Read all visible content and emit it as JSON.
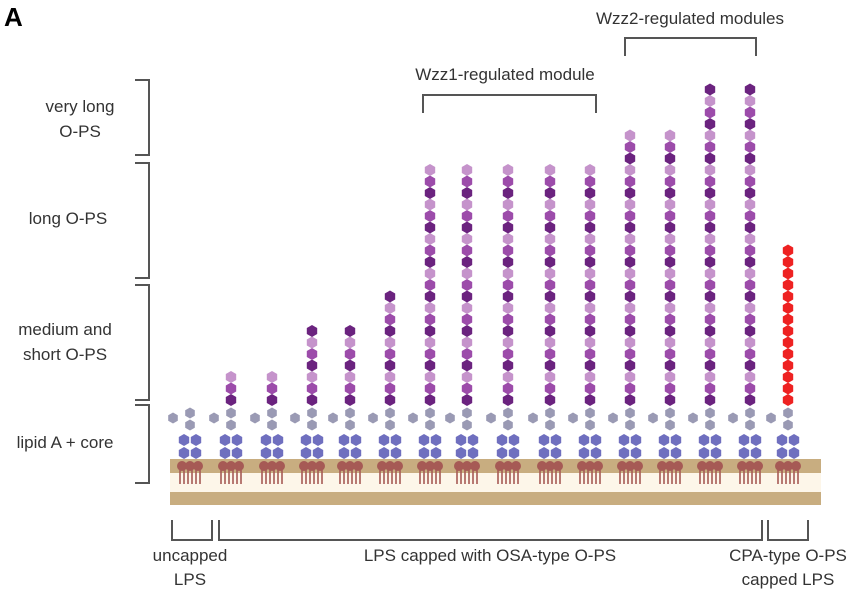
{
  "panel_label": "A",
  "left_labels": [
    {
      "lines": [
        "very long",
        "O-PS"
      ]
    },
    {
      "lines": [
        "long O-PS"
      ]
    },
    {
      "lines": [
        "medium and",
        "short O-PS"
      ]
    },
    {
      "lines": [
        "lipid A + core"
      ]
    }
  ],
  "top_labels": [
    "Wzz1-regulated module",
    "Wzz2-regulated modules"
  ],
  "bottom_labels": [
    {
      "lines": [
        "uncapped",
        "LPS"
      ]
    },
    {
      "lines": [
        "LPS capped with OSA-type O-PS"
      ]
    },
    {
      "lines": [
        "CPA-type O-PS",
        "capped LPS"
      ]
    }
  ]
}
